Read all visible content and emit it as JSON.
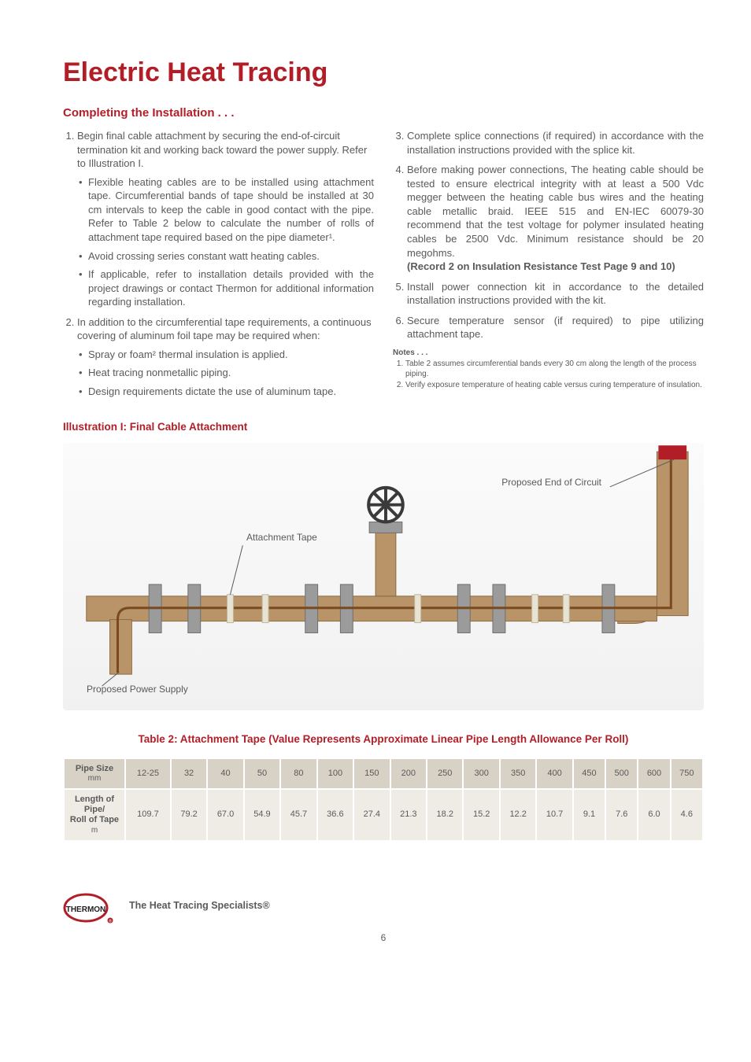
{
  "colors": {
    "accent_red": "#b21e28",
    "body_text": "#5a5a5a",
    "table_header_bg": "#d7d2c5",
    "table_row_bg": "#eeece5",
    "illus_bg_top": "#fbfbfb",
    "illus_bg_bottom": "#f1f1f1",
    "pipe_main": "#b89468",
    "pipe_shadow": "#8a6a44",
    "flange": "#9b9b9b",
    "valve_wheel": "#3a3a3a"
  },
  "title": "Electric Heat Tracing",
  "subhead": "Completing the Installation . . .",
  "left_col": {
    "item1": {
      "lead": "Begin final cable attachment by securing the end-of-circuit termination kit and working back toward the power supply. Refer to Illustration I.",
      "bullets": [
        "Flexible heating cables are to be installed using attachment tape. Circumferential bands of tape should be installed at 30 cm intervals to keep the cable in good contact with the pipe. Refer to Table 2 below to calculate the number of rolls of attachment tape required based on the pipe diameter¹.",
        "Avoid crossing series constant watt heating cables.",
        "If applicable, refer to installation details provided with the project drawings or contact Thermon for additional information regarding installation."
      ]
    },
    "item2": {
      "lead": "In addition to the circumferential tape requirements,  a continuous covering of aluminum foil tape may be required when:",
      "bullets": [
        "Spray or foam² thermal insulation is applied.",
        "Heat tracing nonmetallic piping.",
        "Design requirements dictate the use of aluminum tape."
      ]
    }
  },
  "right_col": {
    "item3": "Complete splice connections (if required) in accordance with the installation instructions provided with the splice kit.",
    "item4_body": "Before making power connections, The heating cable should be tested to ensure electrical integrity with at least a 500 Vdc megger between the heating cable bus wires and the heating cable metallic braid. IEEE 515 and EN-IEC 60079-30 recommend that the test voltage for polymer insulated heating cables be 2500 Vdc. Minimum resistance should be 20 megohms.",
    "item4_strong": "(Record 2 on Insulation Resistance Test Page 9 and 10)",
    "item5": "Install power connection kit in accordance to the detailed installation instructions provided with the kit.",
    "item6": "Secure temperature sensor (if required) to pipe utilizing attachment tape.",
    "notes_heading": "Notes . . .",
    "notes": [
      "Table 2 assumes circumferential bands every 30 cm along the length of the process piping.",
      "Verify exposure temperature of heating cable versus curing temperature of insulation."
    ]
  },
  "illustration": {
    "title": "Illustration I: Final Cable Attachment",
    "label_attachment_tape": "Attachment Tape",
    "label_end_circuit": "Proposed End of Circuit",
    "label_power_supply": "Proposed Power Supply"
  },
  "table2": {
    "title": "Table 2: Attachment Tape (Value Represents Approximate Linear Pipe Length Allowance Per Roll)",
    "row1_label": "Pipe Size",
    "row1_unit": "mm",
    "row2_label": "Length of Pipe/\nRoll of Tape",
    "row2_unit": "m",
    "pipe_sizes": [
      "12-25",
      "32",
      "40",
      "50",
      "80",
      "100",
      "150",
      "200",
      "250",
      "300",
      "350",
      "400",
      "450",
      "500",
      "600",
      "750"
    ],
    "lengths": [
      "109.7",
      "79.2",
      "67.0",
      "54.9",
      "45.7",
      "36.6",
      "27.4",
      "21.3",
      "18.2",
      "15.2",
      "12.2",
      "10.7",
      "9.1",
      "7.6",
      "6.0",
      "4.6"
    ]
  },
  "footer": {
    "logo_text": "THERMON",
    "tagline": "The Heat Tracing Specialists®",
    "page_number": "6"
  }
}
